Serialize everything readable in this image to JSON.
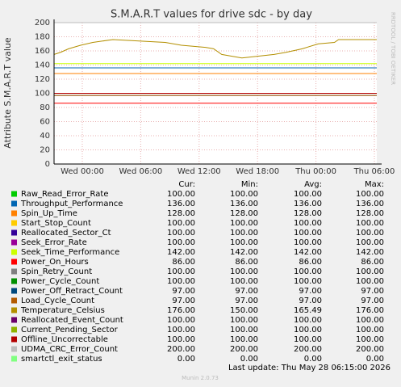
{
  "chart_data": {
    "type": "line",
    "title": "S.M.A.R.T values for drive sdc - by day",
    "y_label": "Attribute S.M.A.R.T value",
    "side_label": "RRDTOOL / TOBI OETIKER",
    "xlim": [
      -2.9,
      30.25
    ],
    "xticks": [
      {
        "value": 0,
        "label": "Wed 00:00"
      },
      {
        "value": 6,
        "label": "Wed 06:00"
      },
      {
        "value": 12,
        "label": "Wed 12:00"
      },
      {
        "value": 18,
        "label": "Wed 18:00"
      },
      {
        "value": 24,
        "label": "Thu 00:00"
      },
      {
        "value": 30,
        "label": "Thu 06:00"
      }
    ],
    "ylim": [
      0,
      200
    ],
    "yticks": [
      0,
      20,
      40,
      60,
      80,
      100,
      120,
      140,
      160,
      180,
      200
    ],
    "grid": true,
    "legend_columns": [
      "Cur:",
      "Min:",
      "Avg:",
      "Max:"
    ],
    "series": [
      {
        "name": "Raw_Read_Error_Rate",
        "color": "#00cc00",
        "x": [
          -2.9,
          30.25
        ],
        "values": [
          100,
          100
        ],
        "stats": [
          "100.00",
          "100.00",
          "100.00",
          "100.00"
        ]
      },
      {
        "name": "Throughput_Performance",
        "color": "#0066b3",
        "x": [
          -2.9,
          30.25
        ],
        "values": [
          136,
          136
        ],
        "stats": [
          "136.00",
          "136.00",
          "136.00",
          "136.00"
        ]
      },
      {
        "name": "Spin_Up_Time",
        "color": "#ff8000",
        "x": [
          -2.9,
          30.25
        ],
        "values": [
          128,
          128
        ],
        "stats": [
          "128.00",
          "128.00",
          "128.00",
          "128.00"
        ]
      },
      {
        "name": "Start_Stop_Count",
        "color": "#ffcc00",
        "x": [
          -2.9,
          30.25
        ],
        "values": [
          100,
          100
        ],
        "stats": [
          "100.00",
          "100.00",
          "100.00",
          "100.00"
        ]
      },
      {
        "name": "Reallocated_Sector_Ct",
        "color": "#330099",
        "x": [
          -2.9,
          30.25
        ],
        "values": [
          100,
          100
        ],
        "stats": [
          "100.00",
          "100.00",
          "100.00",
          "100.00"
        ]
      },
      {
        "name": "Seek_Error_Rate",
        "color": "#990099",
        "x": [
          -2.9,
          30.25
        ],
        "values": [
          100,
          100
        ],
        "stats": [
          "100.00",
          "100.00",
          "100.00",
          "100.00"
        ]
      },
      {
        "name": "Seek_Time_Performance",
        "color": "#ccff00",
        "x": [
          -2.9,
          30.25
        ],
        "values": [
          142,
          142
        ],
        "stats": [
          "142.00",
          "142.00",
          "142.00",
          "142.00"
        ]
      },
      {
        "name": "Power_On_Hours",
        "color": "#ff0000",
        "x": [
          -2.9,
          30.25
        ],
        "values": [
          86,
          86
        ],
        "stats": [
          "86.00",
          "86.00",
          "86.00",
          "86.00"
        ]
      },
      {
        "name": "Spin_Retry_Count",
        "color": "#808080",
        "x": [
          -2.9,
          30.25
        ],
        "values": [
          100,
          100
        ],
        "stats": [
          "100.00",
          "100.00",
          "100.00",
          "100.00"
        ]
      },
      {
        "name": "Power_Cycle_Count",
        "color": "#008f00",
        "x": [
          -2.9,
          30.25
        ],
        "values": [
          100,
          100
        ],
        "stats": [
          "100.00",
          "100.00",
          "100.00",
          "100.00"
        ]
      },
      {
        "name": "Power_Off_Retract_Count",
        "color": "#00487d",
        "x": [
          -2.9,
          30.25
        ],
        "values": [
          97,
          97
        ],
        "stats": [
          "97.00",
          "97.00",
          "97.00",
          "97.00"
        ]
      },
      {
        "name": "Load_Cycle_Count",
        "color": "#b35a00",
        "x": [
          -2.9,
          30.25
        ],
        "values": [
          97,
          97
        ],
        "stats": [
          "97.00",
          "97.00",
          "97.00",
          "97.00"
        ]
      },
      {
        "name": "Temperature_Celsius",
        "color": "#b38f00",
        "x": [
          -2.9,
          -2.23,
          -1.41,
          -0.17,
          1.08,
          3.14,
          8.52,
          10.18,
          12.66,
          13.49,
          14.32,
          16.39,
          19.7,
          20.94,
          22.59,
          24.25,
          25.9,
          26.32,
          30.25
        ],
        "values": [
          155,
          158,
          163,
          168,
          172,
          176,
          172,
          168,
          165,
          163,
          155,
          150,
          155,
          158,
          163,
          170,
          172,
          176,
          176
        ],
        "stats": [
          "176.00",
          "150.00",
          "165.49",
          "176.00"
        ]
      },
      {
        "name": "Reallocated_Event_Count",
        "color": "#6b006b",
        "x": [
          -2.9,
          30.25
        ],
        "values": [
          100,
          100
        ],
        "stats": [
          "100.00",
          "100.00",
          "100.00",
          "100.00"
        ]
      },
      {
        "name": "Current_Pending_Sector",
        "color": "#8fb300",
        "x": [
          -2.9,
          30.25
        ],
        "values": [
          100,
          100
        ],
        "stats": [
          "100.00",
          "100.00",
          "100.00",
          "100.00"
        ]
      },
      {
        "name": "Offline_Uncorrectable",
        "color": "#b30000",
        "x": [
          -2.9,
          30.25
        ],
        "values": [
          100,
          100
        ],
        "stats": [
          "100.00",
          "100.00",
          "100.00",
          "100.00"
        ]
      },
      {
        "name": "UDMA_CRC_Error_Count",
        "color": "#bebebe",
        "x": [
          -2.9,
          30.25
        ],
        "values": [
          200,
          200
        ],
        "stats": [
          "200.00",
          "200.00",
          "200.00",
          "200.00"
        ]
      },
      {
        "name": "smartctl_exit_status",
        "color": "#80ff80",
        "x": [
          -2.9,
          30.25
        ],
        "values": [
          0,
          0
        ],
        "stats": [
          "0.00",
          "0.00",
          "0.00",
          "0.00"
        ]
      }
    ],
    "last_update": "Last update: Thu May 28 06:15:00 2026",
    "footer": "Munin 2.0.73"
  }
}
